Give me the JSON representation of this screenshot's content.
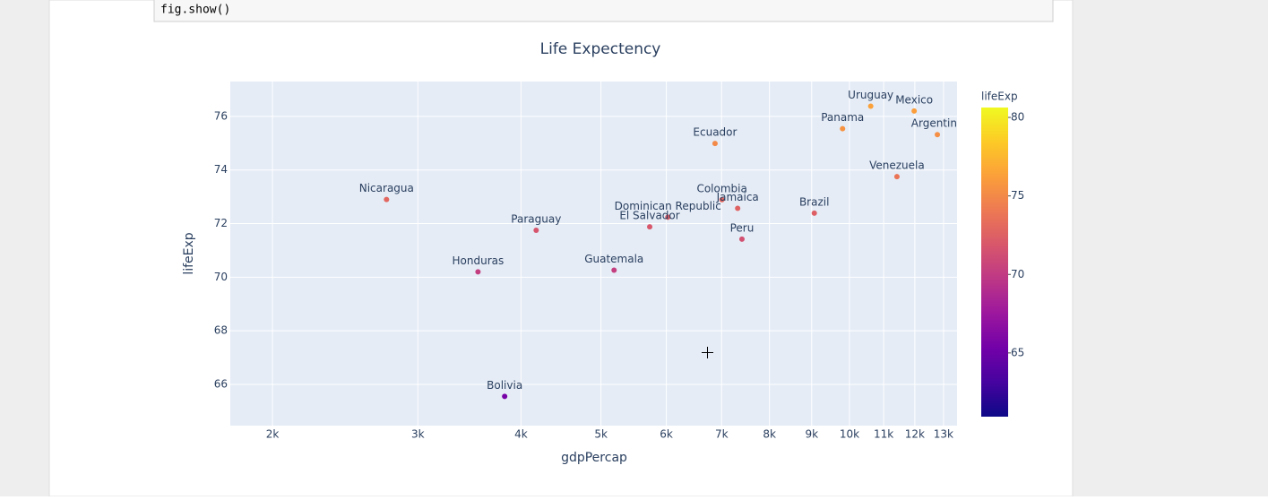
{
  "code_cell": {
    "code": "fig.show()"
  },
  "chart_data": {
    "type": "scatter",
    "title": "Life Expectency",
    "x_label": "gdpPercap",
    "y_label": "lifeExp",
    "log_x": true,
    "grid": true,
    "labels": [
      "Argentina",
      "Bolivia",
      "Brazil",
      "Colombia",
      "Dominican Republic",
      "Ecuador",
      "El Salvador",
      "Guatemala",
      "Honduras",
      "Jamaica",
      "Mexico",
      "Nicaragua",
      "Panama",
      "Paraguay",
      "Peru",
      "Uruguay",
      "Venezuela"
    ],
    "x": [
      12779,
      3822,
      9066,
      7007,
      6025,
      6873,
      5728,
      5186,
      3548,
      7321,
      11978,
      2749,
      9809,
      4173,
      7409,
      10611,
      11416
    ],
    "values": [
      75.32,
      65.55,
      72.39,
      72.89,
      72.24,
      74.99,
      71.88,
      70.26,
      70.2,
      72.57,
      76.2,
      72.9,
      75.54,
      71.75,
      71.42,
      76.38,
      73.75
    ],
    "xlim": [
      1778,
      13500
    ],
    "ylim": [
      64.46,
      77.3
    ],
    "xticks": [
      {
        "value": 2000,
        "label": "2k"
      },
      {
        "value": 3000,
        "label": "3k"
      },
      {
        "value": 4000,
        "label": "4k"
      },
      {
        "value": 5000,
        "label": "5k"
      },
      {
        "value": 6000,
        "label": "6k"
      },
      {
        "value": 7000,
        "label": "7k"
      },
      {
        "value": 8000,
        "label": "8k"
      },
      {
        "value": 9000,
        "label": "9k"
      },
      {
        "value": 10000,
        "label": "10k"
      },
      {
        "value": 11000,
        "label": "11k"
      },
      {
        "value": 12000,
        "label": "12k"
      },
      {
        "value": 13000,
        "label": "13k"
      }
    ],
    "yticks": [
      66,
      68,
      70,
      72,
      74,
      76
    ],
    "colorscale": [
      "#0d0887",
      "#46039f",
      "#7201a8",
      "#9c179e",
      "#bd3786",
      "#d8576b",
      "#ed7953",
      "#fb9f3a",
      "#fdca26",
      "#f0f921"
    ],
    "colorbar": {
      "title": "lifeExp",
      "lim": [
        60.94,
        80.63
      ],
      "ticks": [
        65,
        70,
        75,
        80
      ]
    }
  }
}
